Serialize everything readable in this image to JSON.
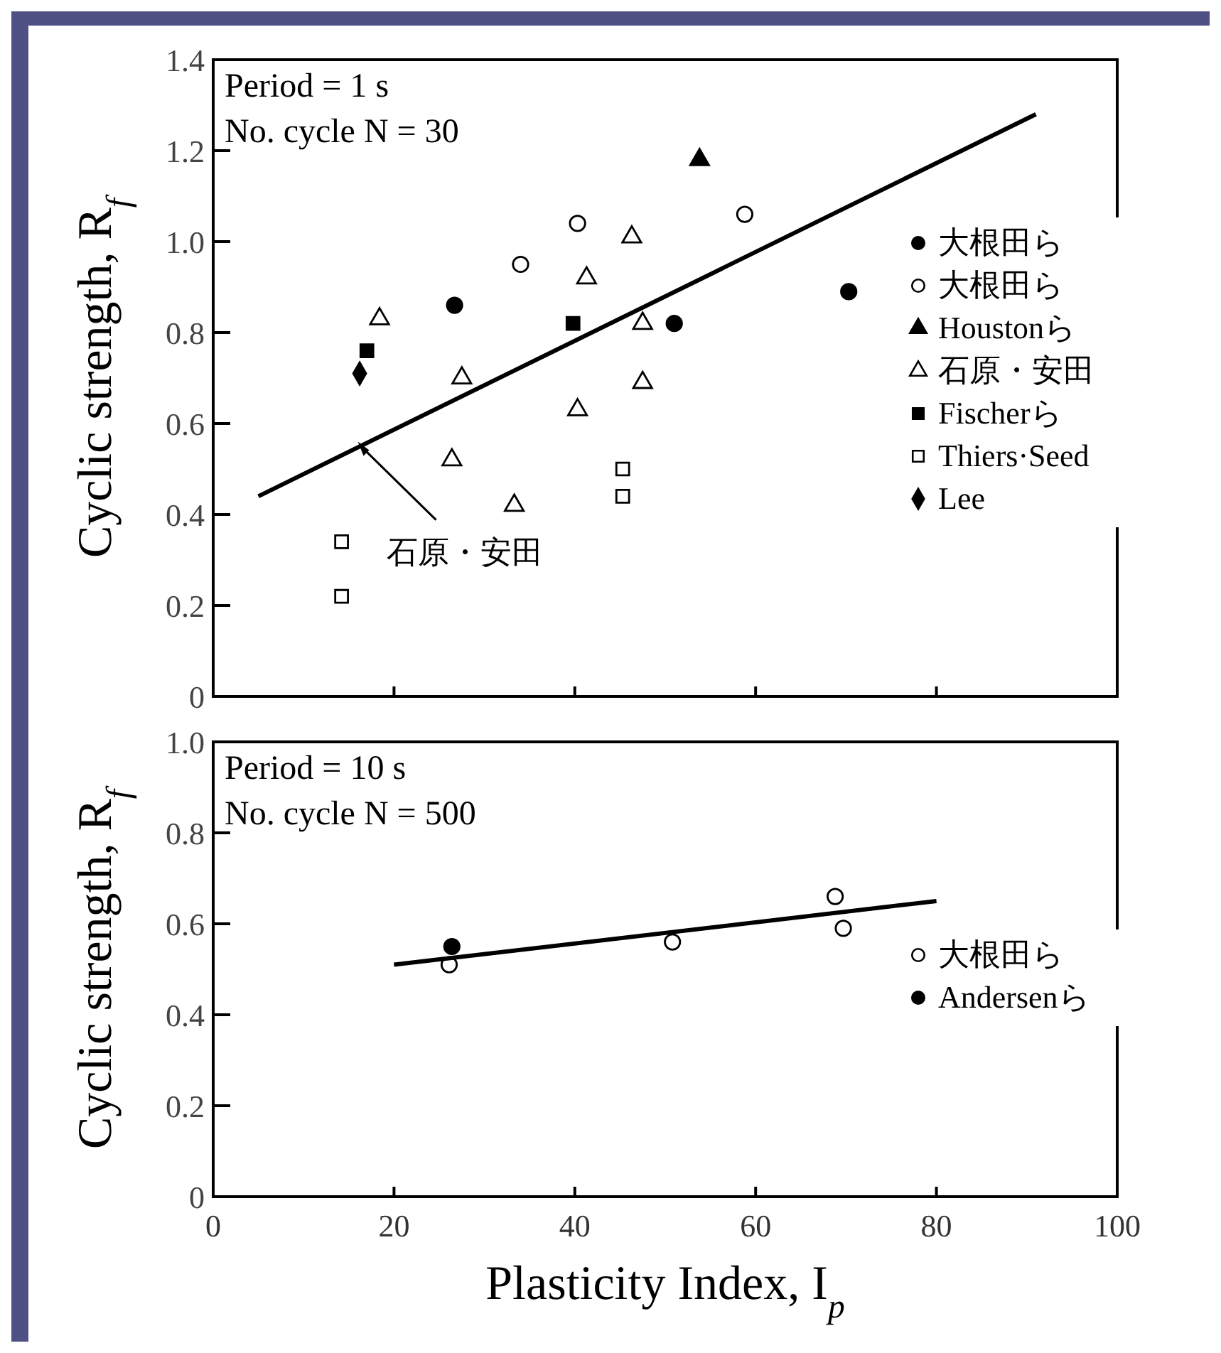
{
  "chart_data": [
    {
      "type": "scatter",
      "ylabel": "Cyclic strength, R$_{f}$",
      "xlim": [
        0,
        100
      ],
      "xticks": [
        {
          "value": 0,
          "label": null
        },
        {
          "value": 20,
          "label": null
        },
        {
          "value": 40,
          "label": null
        },
        {
          "value": 60,
          "label": null
        },
        {
          "value": 80,
          "label": null
        },
        {
          "value": 100,
          "label": null
        }
      ],
      "ylim": [
        0,
        1.4
      ],
      "yticks": [
        0,
        0.2,
        0.4,
        0.6,
        0.8,
        {
          "value": 1,
          "label": "1.0"
        },
        1.2,
        1.4
      ],
      "tick_labels": "y",
      "grid": false,
      "legend": "right",
      "annotations": [
        "Period = 1 s",
        "No. cycle N = 30",
        {
          "text": "石原・安田",
          "x": 16,
          "y": 0.56
        }
      ],
      "series": [
        {
          "name": "大根田ら",
          "marker": "circle",
          "color": "#000000",
          "x": [
            26.7,
            51,
            70.3
          ],
          "values": [
            0.86,
            0.82,
            0.89
          ]
        },
        {
          "name": "大根田ら",
          "marker": "circle",
          "color": "#ffffff",
          "x": [
            34,
            40.3,
            58.8
          ],
          "values": [
            0.95,
            1.04,
            1.06
          ]
        },
        {
          "name": "Houstonら",
          "marker": "triangle",
          "color": "#000000",
          "x": [
            53.8
          ],
          "values": [
            1.18
          ]
        },
        {
          "name": "石原・安田",
          "marker": "triangle",
          "color": "#ffffff",
          "x": [
            18.4,
            27.5,
            26.4,
            33.3,
            40.3,
            41.3,
            46.3,
            47.5,
            47.5
          ],
          "values": [
            0.83,
            0.7,
            0.52,
            0.42,
            0.63,
            0.92,
            1.01,
            0.82,
            0.69
          ]
        },
        {
          "name": "Fischerら",
          "marker": "square",
          "color": "#000000",
          "x": [
            17,
            39.8
          ],
          "values": [
            0.76,
            0.82
          ]
        },
        {
          "name": "Thiers·Seed",
          "marker": "square",
          "color": "#ffffff",
          "x": [
            14.2,
            14.2,
            45.3,
            45.3
          ],
          "values": [
            0.34,
            0.22,
            0.5,
            0.44
          ]
        },
        {
          "name": "Lee",
          "marker": "diamond",
          "color": "#000000",
          "x": [
            16.2
          ],
          "values": [
            0.71
          ]
        },
        {
          "type": "line",
          "marker": "none",
          "line_style": "solid",
          "color": "#000000",
          "x": [
            5,
            91
          ],
          "values": [
            0.44,
            1.28
          ]
        }
      ]
    },
    {
      "type": "scatter",
      "xlabel": "Plasticity Index, I$_{p}$",
      "ylabel": "Cyclic strength, R$_{f}$",
      "xlim": [
        0,
        100
      ],
      "xticks": [
        0,
        20,
        40,
        60,
        80,
        100
      ],
      "ylim": [
        0,
        1
      ],
      "yticks": [
        0,
        0.2,
        0.4,
        0.6,
        0.8,
        {
          "value": 1,
          "label": "1.0"
        }
      ],
      "grid": false,
      "legend": "right",
      "annotations": [
        "Period = 10 s",
        "No. cycle N = 500"
      ],
      "series": [
        {
          "name": "大根田ら",
          "marker": "circle",
          "color": "#ffffff",
          "x": [
            26.1,
            50.8,
            68.8,
            69.7
          ],
          "values": [
            0.51,
            0.56,
            0.66,
            0.59
          ]
        },
        {
          "name": "Andersenら",
          "marker": "circle",
          "color": "#000000",
          "x": [
            26.4
          ],
          "values": [
            0.55
          ]
        },
        {
          "type": "line",
          "marker": "none",
          "line_style": "solid",
          "color": "#000000",
          "x": [
            20,
            80
          ],
          "values": [
            0.51,
            0.65
          ]
        }
      ]
    }
  ]
}
